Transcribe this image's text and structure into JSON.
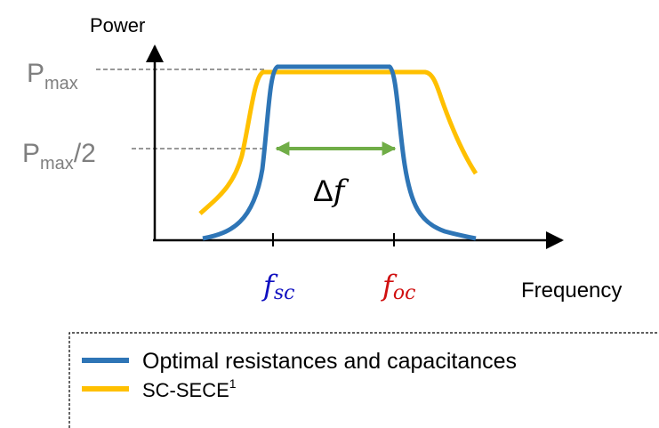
{
  "y_axis_label": "Power",
  "x_axis_label": "Frequency",
  "p_max": {
    "base": "P",
    "sub": "max"
  },
  "p_half": {
    "base": "P",
    "sub": "max",
    "suffix": "/2"
  },
  "bandwidth": {
    "symbol": "Δ",
    "var": "f"
  },
  "f_sc": {
    "base": "f",
    "sub": "sc"
  },
  "f_oc": {
    "base": "f",
    "sub": "oc"
  },
  "legend": [
    {
      "label": "Optimal resistances and capacitances"
    },
    {
      "label": "SC-SECE",
      "sup": "1"
    }
  ]
}
